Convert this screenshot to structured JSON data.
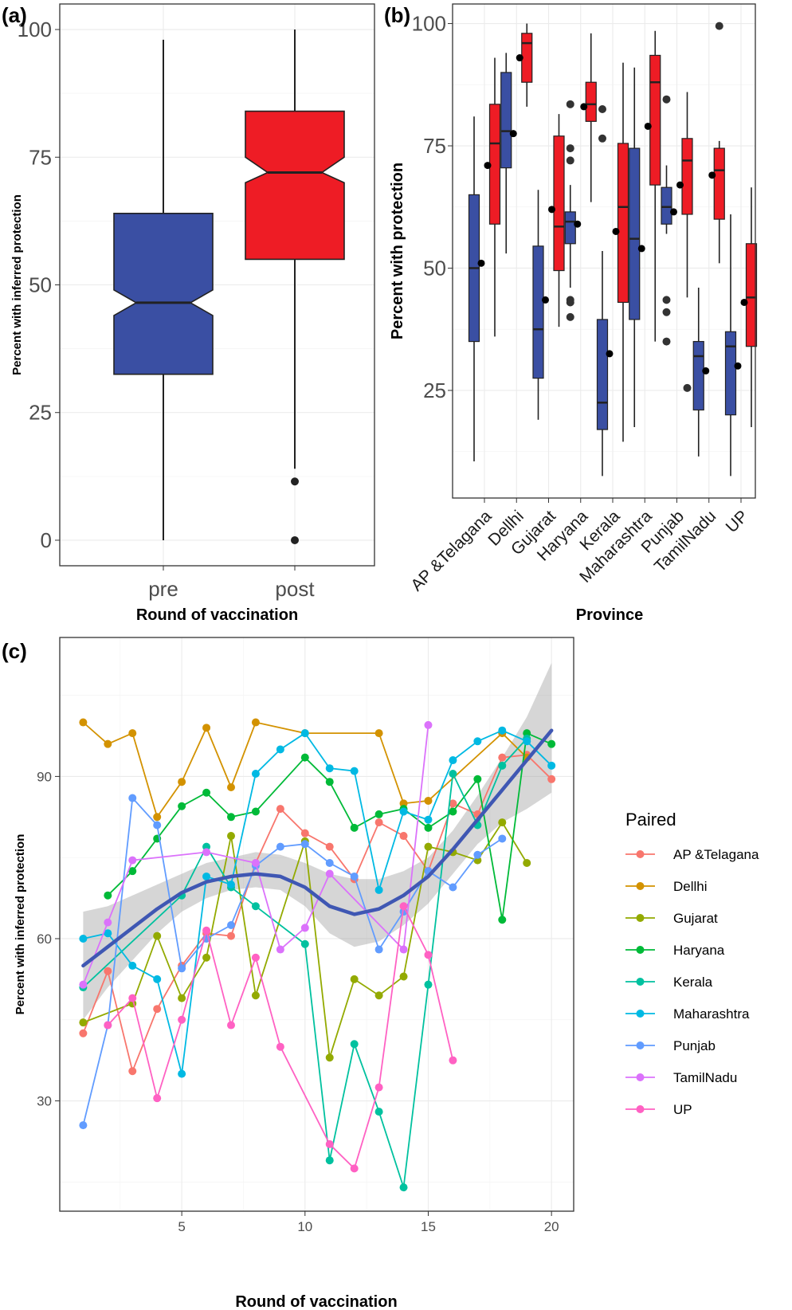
{
  "chart_data": [
    {
      "panel": "(a)",
      "type": "boxplot",
      "notched": true,
      "xlabel": "Round of vaccination",
      "ylabel": "Percent with inferred protection",
      "categories": [
        "pre",
        "post"
      ],
      "yticks": [
        0,
        25,
        50,
        75,
        100
      ],
      "ylim": [
        -5,
        105
      ],
      "grid": true,
      "colors": [
        "#3a4fa3",
        "#ee1c25"
      ],
      "boxes": [
        {
          "name": "pre",
          "min": 0,
          "q1": 32.5,
          "median": 46.5,
          "q3": 64,
          "max": 98,
          "notch_low": 44,
          "notch_high": 49,
          "outliers": []
        },
        {
          "name": "post",
          "min": 14,
          "q1": 55,
          "median": 72,
          "q3": 84,
          "max": 100,
          "notch_low": 70,
          "notch_high": 75,
          "outliers": [
            11.5,
            0
          ]
        }
      ]
    },
    {
      "panel": "(b)",
      "type": "boxplot",
      "xlabel": "Province",
      "ylabel": "Percent with protection",
      "categories": [
        "AP &Telagana",
        "Dellhi",
        "Gujarat",
        "Haryana",
        "Kerala",
        "Maharashtra",
        "Punjab",
        "TamilNadu",
        "UP"
      ],
      "yticks": [
        25,
        50,
        75,
        100
      ],
      "ylim": [
        3,
        104
      ],
      "grid": true,
      "colors": {
        "pre": "#3a4fa3",
        "post": "#ee1c25"
      },
      "boxes": [
        {
          "category": "AP &Telagana",
          "round": "pre",
          "min": 10.5,
          "q1": 35,
          "median": 50,
          "q3": 65,
          "max": 81,
          "outliers": []
        },
        {
          "category": "AP &Telagana",
          "round": "post",
          "min": 36,
          "q1": 59,
          "median": 75.5,
          "q3": 83.5,
          "max": 93,
          "outliers": []
        },
        {
          "category": "Dellhi",
          "round": "pre",
          "min": 53,
          "q1": 70.5,
          "median": 78,
          "q3": 90,
          "max": 94,
          "outliers": []
        },
        {
          "category": "Dellhi",
          "round": "post",
          "min": 83,
          "q1": 88,
          "median": 96,
          "q3": 98,
          "max": 100,
          "outliers": []
        },
        {
          "category": "Gujarat",
          "round": "pre",
          "min": 19,
          "q1": 27.5,
          "median": 37.5,
          "q3": 54.5,
          "max": 66,
          "outliers": []
        },
        {
          "category": "Gujarat",
          "round": "post",
          "min": 38,
          "q1": 49.5,
          "median": 58.5,
          "q3": 77,
          "max": 81.5,
          "outliers": []
        },
        {
          "category": "Haryana",
          "round": "pre",
          "min": 46,
          "q1": 55,
          "median": 59.5,
          "q3": 61.5,
          "max": 67,
          "outliers": [
            83.5,
            74.5,
            72,
            43.5,
            43,
            40
          ]
        },
        {
          "category": "Haryana",
          "round": "post",
          "min": 63.5,
          "q1": 80,
          "median": 83.5,
          "q3": 88,
          "max": 98,
          "outliers": []
        },
        {
          "category": "Kerala",
          "round": "pre",
          "min": 7.5,
          "q1": 17,
          "median": 22.5,
          "q3": 39.5,
          "max": 53.5,
          "outliers": [
            82.5,
            76.5
          ]
        },
        {
          "category": "Kerala",
          "round": "post",
          "min": 14.5,
          "q1": 43,
          "median": 62.5,
          "q3": 75.5,
          "max": 92,
          "outliers": []
        },
        {
          "category": "Maharashtra",
          "round": "pre",
          "min": 17.5,
          "q1": 39.5,
          "median": 56,
          "q3": 74.5,
          "max": 91,
          "outliers": []
        },
        {
          "category": "Maharashtra",
          "round": "post",
          "min": 35,
          "q1": 67,
          "median": 88,
          "q3": 93.5,
          "max": 98.5,
          "outliers": []
        },
        {
          "category": "Punjab",
          "round": "pre",
          "min": 57,
          "q1": 59,
          "median": 62.5,
          "q3": 66.5,
          "max": 71,
          "outliers": [
            84.5,
            43.5,
            41,
            35
          ]
        },
        {
          "category": "Punjab",
          "round": "post",
          "min": 44,
          "q1": 61,
          "median": 72,
          "q3": 76.5,
          "max": 86,
          "outliers": [
            25.5
          ]
        },
        {
          "category": "TamilNadu",
          "round": "pre",
          "min": 11.5,
          "q1": 21,
          "median": 32,
          "q3": 35,
          "max": 46,
          "outliers": []
        },
        {
          "category": "TamilNadu",
          "round": "post",
          "min": 51,
          "q1": 60,
          "median": 70,
          "q3": 74.5,
          "max": 76,
          "outliers": [
            99.5
          ]
        },
        {
          "category": "UP",
          "round": "pre",
          "min": 7.5,
          "q1": 20,
          "median": 34,
          "q3": 37,
          "max": 61,
          "outliers": []
        },
        {
          "category": "UP",
          "round": "post",
          "min": 17.5,
          "q1": 34,
          "median": 44,
          "q3": 55,
          "max": 66.5,
          "outliers": []
        }
      ],
      "points": [
        {
          "category": "AP &Telagana",
          "values": [
            71,
            51
          ]
        },
        {
          "category": "Dellhi",
          "values": [
            93,
            77.5
          ]
        },
        {
          "category": "Gujarat",
          "values": [
            62,
            43.5
          ]
        },
        {
          "category": "Haryana",
          "values": [
            83,
            59
          ]
        },
        {
          "category": "Kerala",
          "values": [
            57.5,
            32.5
          ]
        },
        {
          "category": "Maharashtra",
          "values": [
            79,
            54
          ]
        },
        {
          "category": "Punjab",
          "values": [
            67,
            61.5
          ]
        },
        {
          "category": "TamilNadu",
          "values": [
            69,
            29
          ]
        },
        {
          "category": "UP",
          "values": [
            43,
            30
          ]
        }
      ]
    },
    {
      "panel": "(c)",
      "type": "line",
      "xlabel": "Round of vaccination",
      "ylabel": "Percent with inferred protection",
      "xticks": [
        5,
        10,
        15,
        20
      ],
      "yticks": [
        30,
        60,
        90
      ],
      "xlim": [
        0.05,
        20.9
      ],
      "ylim": [
        9.6,
        115.7
      ],
      "grid": true,
      "legend_title": "Paired",
      "legend_position": "right",
      "series": [
        {
          "name": "AP &Telagana",
          "color": "#f8766d",
          "x": [
            1,
            2,
            3,
            4,
            5,
            6,
            7,
            8,
            9,
            10,
            11,
            12,
            13,
            14,
            15,
            16,
            17,
            18,
            19,
            20
          ],
          "y": [
            42.5,
            54,
            35.5,
            47,
            55,
            61,
            60.5,
            74,
            84,
            79.5,
            77,
            71,
            81.5,
            79,
            72.5,
            85,
            83,
            93.5,
            94,
            89.5
          ]
        },
        {
          "name": "Dellhi",
          "color": "#d39200",
          "x": [
            1,
            2,
            3,
            4,
            5,
            6,
            7,
            8,
            10,
            13,
            14,
            15,
            18,
            19
          ],
          "y": [
            100,
            96,
            98,
            82.5,
            89,
            99,
            88,
            100,
            98,
            98,
            85,
            85.5,
            98,
            93.5
          ]
        },
        {
          "name": "Gujarat",
          "color": "#93aa00",
          "x": [
            1,
            3,
            4,
            5,
            6,
            7,
            8,
            10,
            11,
            12,
            13,
            14,
            15,
            16,
            17,
            18,
            19
          ],
          "y": [
            44.5,
            48,
            60.5,
            49,
            56.5,
            79,
            49.5,
            78,
            38,
            52.5,
            49.5,
            53,
            77,
            76,
            74.5,
            81.5,
            74
          ]
        },
        {
          "name": "Haryana",
          "color": "#00ba38",
          "x": [
            2,
            3,
            4,
            5,
            6,
            7,
            8,
            10,
            11,
            12,
            13,
            14,
            15,
            16,
            17,
            18,
            19,
            20
          ],
          "y": [
            68,
            72.5,
            78.5,
            84.5,
            87,
            82.5,
            83.5,
            93.5,
            89,
            80.5,
            83,
            84,
            80.5,
            83.5,
            89.5,
            63.5,
            98,
            96
          ]
        },
        {
          "name": "Kerala",
          "color": "#00c19f",
          "x": [
            1,
            5,
            6,
            7,
            8,
            10,
            11,
            12,
            13,
            14,
            15,
            16,
            17,
            18,
            19
          ],
          "y": [
            51,
            68,
            77,
            69.5,
            66,
            59,
            19,
            40.5,
            28,
            14,
            51.5,
            90.5,
            81,
            92,
            97
          ]
        },
        {
          "name": "Maharashtra",
          "color": "#00b9e3",
          "x": [
            1,
            2,
            3,
            4,
            5,
            6,
            7,
            8,
            9,
            10,
            11,
            12,
            13,
            14,
            15,
            16,
            17,
            18,
            19,
            20
          ],
          "y": [
            60,
            61,
            55,
            52.5,
            35,
            71.5,
            70,
            90.5,
            95,
            98,
            91.5,
            91,
            69,
            83.5,
            82,
            93,
            96.5,
            98.5,
            96.5,
            92
          ]
        },
        {
          "name": "Punjab",
          "color": "#619cff",
          "x": [
            1,
            2,
            3,
            4,
            5,
            6,
            7,
            8,
            9,
            10,
            11,
            12,
            13,
            14,
            15,
            16,
            17,
            18
          ],
          "y": [
            25.5,
            44,
            86,
            81,
            54.5,
            60,
            62.5,
            73.5,
            77,
            77.5,
            74,
            71.5,
            58,
            65,
            72.5,
            69.5,
            75.5,
            78.5
          ]
        },
        {
          "name": "TamilNadu",
          "color": "#db72fb",
          "x": [
            1,
            2,
            3,
            6,
            8,
            9,
            10,
            11,
            14,
            15
          ],
          "y": [
            51.5,
            63,
            74.5,
            76,
            74,
            58,
            62,
            72,
            58,
            99.5
          ]
        },
        {
          "name": "UP",
          "color": "#ff61c3",
          "x": [
            2,
            3,
            4,
            5,
            6,
            7,
            8,
            9,
            11,
            12,
            13,
            14,
            15,
            16
          ],
          "y": [
            44,
            49,
            30.5,
            45,
            61.5,
            44,
            56.5,
            40,
            22,
            17.5,
            32.5,
            66,
            57,
            37.5
          ]
        }
      ],
      "smooth": {
        "color": "#3f57b3",
        "x": [
          1,
          2,
          3,
          4,
          5,
          6,
          7,
          8,
          9,
          10,
          11,
          12,
          13,
          14,
          15,
          16,
          17,
          18,
          19,
          20
        ],
        "y": [
          55,
          58.5,
          62,
          65.5,
          68.5,
          70.5,
          71.5,
          72,
          71.5,
          69.5,
          66,
          64.5,
          65.5,
          68,
          71.5,
          76.5,
          82,
          87.5,
          93,
          98.5
        ],
        "upper": [
          65,
          66,
          68,
          70,
          72,
          74,
          75,
          76,
          75.5,
          74,
          72,
          71,
          71,
          72.5,
          75,
          80,
          86.5,
          93.5,
          101,
          111
        ],
        "lower": [
          45,
          51,
          56,
          61,
          65,
          67.5,
          69,
          69.5,
          69,
          66,
          61,
          58.5,
          59.5,
          62.5,
          66.5,
          72,
          77.5,
          81.5,
          84,
          87
        ]
      }
    }
  ]
}
